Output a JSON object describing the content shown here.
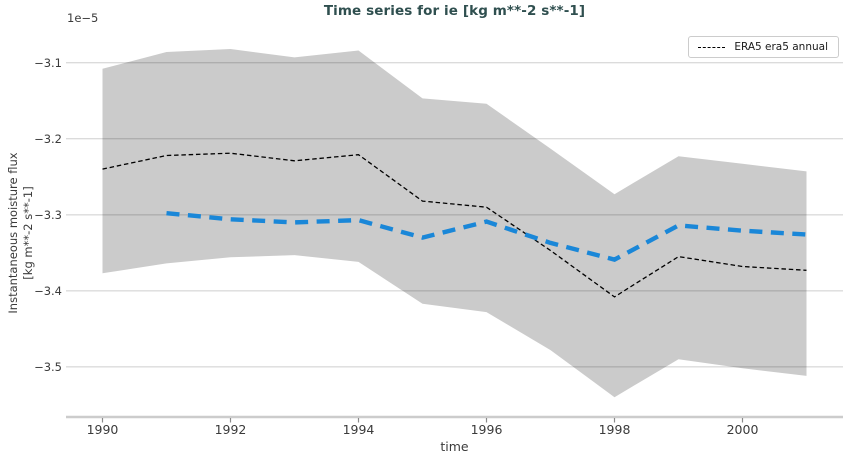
{
  "title": "Time series for ie [kg m**-2 s**-1]",
  "axes": {
    "offset_text": "1e−5",
    "ylabel_line1": "Instantaneous moisture flux",
    "ylabel_line2": "[kg m**-2 s**-1]",
    "xlabel": "time"
  },
  "legend": {
    "items": [
      {
        "label": "ERA5 era5 annual",
        "line_style": "dashed",
        "color": "#000000"
      }
    ],
    "position": "upper right"
  },
  "colors": {
    "title": "#2f4f4f",
    "band": "#cbcbcb",
    "era5_line": "#000000",
    "blue_line": "#1a87d8",
    "grid": "rgba(0,0,0,0.14)",
    "spine": "#cccccc",
    "tick_mark": "#8a8a8a",
    "tick_label": "#3b3b3b"
  },
  "chart_data": {
    "type": "line",
    "title": "Time series for ie [kg m**-2 s**-1]",
    "xlabel": "time",
    "ylabel": "Instantaneous moisture flux [kg m**-2 s**-1]",
    "y_unit_multiplier": "1e-5",
    "grid": true,
    "legend_position": "upper right",
    "x_range": [
      1989.43,
      2001.57
    ],
    "y_range": [
      -3.566,
      -3.057
    ],
    "x_ticks": [
      1990,
      1992,
      1994,
      1996,
      1998,
      2000
    ],
    "x_tick_labels": [
      "1990",
      "1992",
      "1994",
      "1996",
      "1998",
      "2000"
    ],
    "y_ticks": [
      -3.1,
      -3.2,
      -3.3,
      -3.4,
      -3.5
    ],
    "y_tick_labels": [
      "−3.1",
      "−3.2",
      "−3.3",
      "−3.4",
      "−3.5"
    ],
    "band": {
      "name": "uncertainty-band (unlabeled)",
      "x": [
        1990,
        1991,
        1992,
        1993,
        1994,
        1995,
        1996,
        1997,
        1998,
        1999,
        2000,
        2001
      ],
      "upper": [
        -3.108,
        -3.086,
        -3.082,
        -3.093,
        -3.084,
        -3.147,
        -3.154,
        -3.213,
        -3.273,
        -3.223,
        -3.233,
        -3.243
      ],
      "lower": [
        -3.377,
        -3.364,
        -3.356,
        -3.353,
        -3.362,
        -3.417,
        -3.428,
        -3.478,
        -3.54,
        -3.49,
        -3.502,
        -3.512
      ]
    },
    "series": [
      {
        "name": "ERA5 era5 annual",
        "in_legend": true,
        "style": "dashed-thin",
        "color": "#000000",
        "x": [
          1990,
          1991,
          1992,
          1993,
          1994,
          1995,
          1996,
          1997,
          1998,
          1999,
          2000,
          2001
        ],
        "y": [
          -3.24,
          -3.222,
          -3.219,
          -3.229,
          -3.221,
          -3.282,
          -3.29,
          -3.347,
          -3.408,
          -3.355,
          -3.368,
          -3.373
        ]
      },
      {
        "name": "",
        "in_legend": false,
        "style": "dashed-thick",
        "color": "#1a87d8",
        "x": [
          1991,
          1992,
          1993,
          1994,
          1995,
          1996,
          1997,
          1998,
          1999,
          2000,
          2001
        ],
        "y": [
          -3.298,
          -3.306,
          -3.31,
          -3.307,
          -3.33,
          -3.309,
          -3.337,
          -3.359,
          -3.314,
          -3.321,
          -3.326
        ]
      }
    ]
  }
}
